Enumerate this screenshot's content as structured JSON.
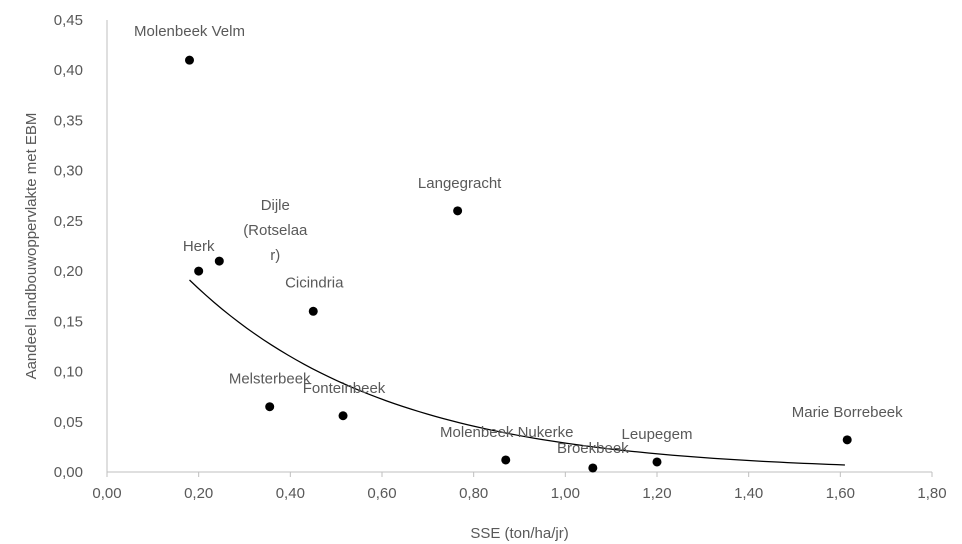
{
  "chart_data": {
    "type": "scatter",
    "title": "",
    "xlabel": "SSE (ton/ha/jr)",
    "ylabel": "Aandeel landbouwoppervlakte met EBM",
    "xlim": [
      0,
      1.8
    ],
    "ylim": [
      0,
      0.45
    ],
    "x_ticks": [
      "0,00",
      "0,20",
      "0,40",
      "0,60",
      "0,80",
      "1,00",
      "1,20",
      "1,40",
      "1,60",
      "1,80"
    ],
    "y_ticks": [
      "0,00",
      "0,05",
      "0,10",
      "0,15",
      "0,20",
      "0,25",
      "0,30",
      "0,35",
      "0,40",
      "0,45"
    ],
    "grid": false,
    "legend": "none",
    "colors": {
      "points": "#000000",
      "trendline": "#000000",
      "axis": "#bfbfbf",
      "text": "#595959"
    },
    "points": [
      {
        "label": "Molenbeek Velm",
        "x": 0.18,
        "y": 0.41
      },
      {
        "label": "Herk",
        "x": 0.2,
        "y": 0.2
      },
      {
        "label": "Dijle (Rotselaar)",
        "label_lines": [
          "Dijle",
          "(Rotselaa",
          "r)"
        ],
        "x": 0.245,
        "y": 0.21
      },
      {
        "label": "Cicindria",
        "x": 0.45,
        "y": 0.16
      },
      {
        "label": "Melsterbeek",
        "x": 0.355,
        "y": 0.065
      },
      {
        "label": "Fonteinbeek",
        "x": 0.515,
        "y": 0.056
      },
      {
        "label": "Langegracht",
        "x": 0.765,
        "y": 0.26
      },
      {
        "label": "Molenbeek Nukerke",
        "x": 0.87,
        "y": 0.012
      },
      {
        "label": "Broekbeek",
        "x": 1.06,
        "y": 0.004
      },
      {
        "label": "Leupegem",
        "x": 1.2,
        "y": 0.01
      },
      {
        "label": "Marie Borrebeek",
        "x": 1.615,
        "y": 0.032
      }
    ],
    "trendline": {
      "type": "exponential",
      "x_range": [
        0.18,
        1.61
      ]
    }
  }
}
